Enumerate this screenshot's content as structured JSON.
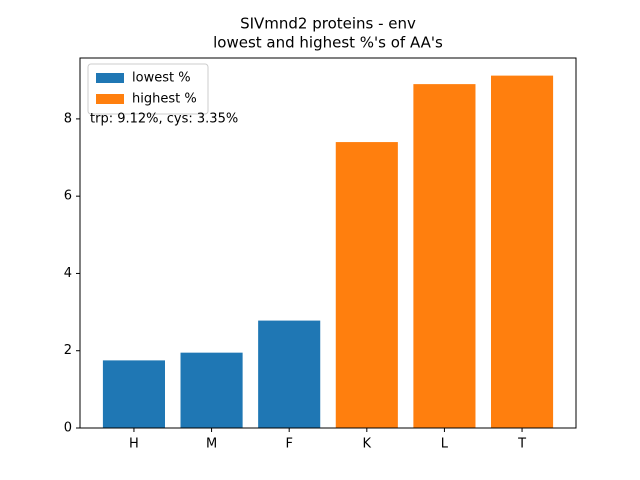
{
  "chart_data": {
    "type": "bar",
    "title": [
      "SIVmnd2 proteins - env",
      "lowest and highest %'s of AA's"
    ],
    "categories": [
      "H",
      "M",
      "F",
      "K",
      "L",
      "T"
    ],
    "series": [
      {
        "name": "lowest %",
        "color": "#1f77b4",
        "values": [
          1.75,
          1.95,
          2.78,
          null,
          null,
          null
        ]
      },
      {
        "name": "highest %",
        "color": "#ff7f0e",
        "values": [
          null,
          null,
          null,
          7.4,
          8.9,
          9.12
        ]
      }
    ],
    "annotation": "trp: 9.12%, cys: 3.35%",
    "ylim": [
      0,
      9.576
    ],
    "yticks": [
      0,
      2,
      4,
      6,
      8
    ],
    "legend": "upper left",
    "grid": false
  }
}
